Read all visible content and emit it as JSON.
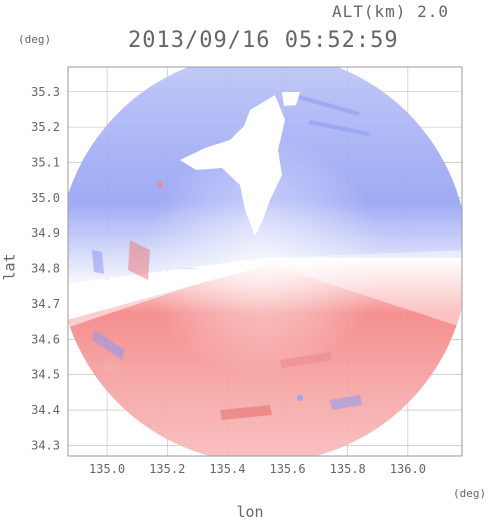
{
  "header": {
    "altitude": "ALT(km) 2.0",
    "timestamp": "2013/09/16 05:52:59"
  },
  "axes": {
    "x_label": "lon",
    "y_label": "lat",
    "x_unit": "(deg)",
    "y_unit": "(deg)",
    "x_range": [
      134.87,
      136.18
    ],
    "y_range": [
      34.27,
      35.37
    ],
    "x_ticks": [
      "135.0",
      "135.2",
      "135.4",
      "135.6",
      "135.8",
      "136.0"
    ],
    "y_ticks": [
      "35.3",
      "35.2",
      "35.1",
      "35.0",
      "34.9",
      "34.8",
      "34.7",
      "34.6",
      "34.5",
      "34.4",
      "34.3"
    ],
    "grid": true
  },
  "colors": {
    "approaching": "#6f7ff0",
    "receding": "#f26a6a",
    "neutral": "#ffffff",
    "text": "#666666",
    "grid": "#bbbbbb"
  },
  "radar": {
    "center_lon": 135.52,
    "center_lat": 34.82
  }
}
